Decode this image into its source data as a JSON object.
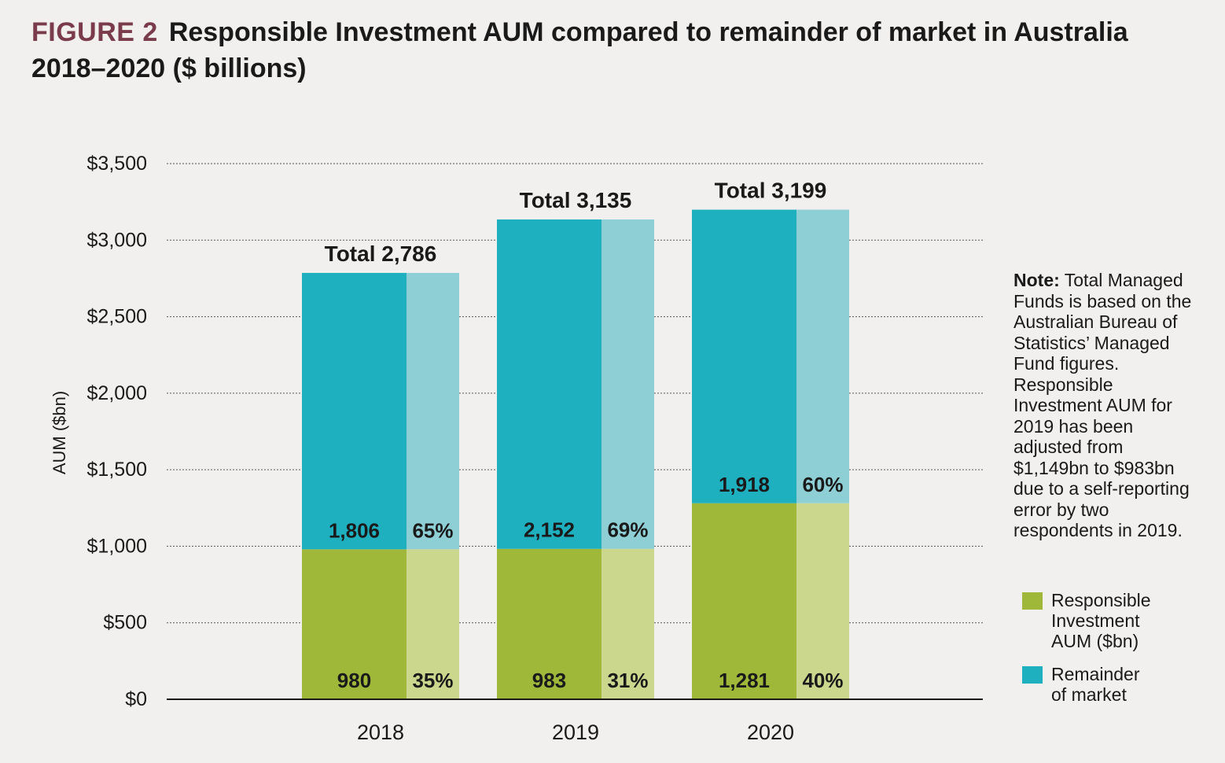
{
  "title": {
    "figure_label": "FIGURE 2",
    "text": "Responsible Investment AUM compared to remainder of market in Australia 2018–2020 ($ billions)"
  },
  "note": {
    "label": "Note:",
    "text": "Total Managed Funds is based on the Australian Bureau of Statistics’ Managed Fund figures. Responsible Investment AUM for 2019 has been adjusted from $1,149bn to $983bn due to a self-reporting error by two respondents in 2019."
  },
  "legend": [
    {
      "label": "Responsible Investment AUM ($bn)",
      "color": "#a0b83a"
    },
    {
      "label": "Remainder of market",
      "color": "#1fb0bf"
    }
  ],
  "chart_data": {
    "type": "bar",
    "stacked": true,
    "categories": [
      "2018",
      "2019",
      "2020"
    ],
    "ylabel": "AUM ($bn)",
    "ylim": [
      0,
      3500
    ],
    "yticks": [
      0,
      500,
      1000,
      1500,
      2000,
      2500,
      3000,
      3500
    ],
    "ytick_labels": [
      "$0",
      "$500",
      "$1,000",
      "$1,500",
      "$2,000",
      "$2,500",
      "$3,000",
      "$3,500"
    ],
    "grid": true,
    "series": [
      {
        "name": "Responsible Investment AUM ($bn)",
        "values": [
          980,
          983,
          1281
        ],
        "value_labels": [
          "980",
          "983",
          "1,281"
        ],
        "share_labels": [
          "35%",
          "31%",
          "40%"
        ],
        "color": "#a0b83a",
        "share_color": "#ccd78e"
      },
      {
        "name": "Remainder of market",
        "values": [
          1806,
          2152,
          1918
        ],
        "value_labels": [
          "1,806",
          "2,152",
          "1,918"
        ],
        "share_labels": [
          "65%",
          "69%",
          "60%"
        ],
        "color": "#1fb0bf",
        "share_color": "#8ecfd6"
      }
    ],
    "totals": [
      2786,
      3135,
      3199
    ],
    "total_labels": [
      "Total 2,786",
      "Total 3,135",
      "Total 3,199"
    ]
  }
}
